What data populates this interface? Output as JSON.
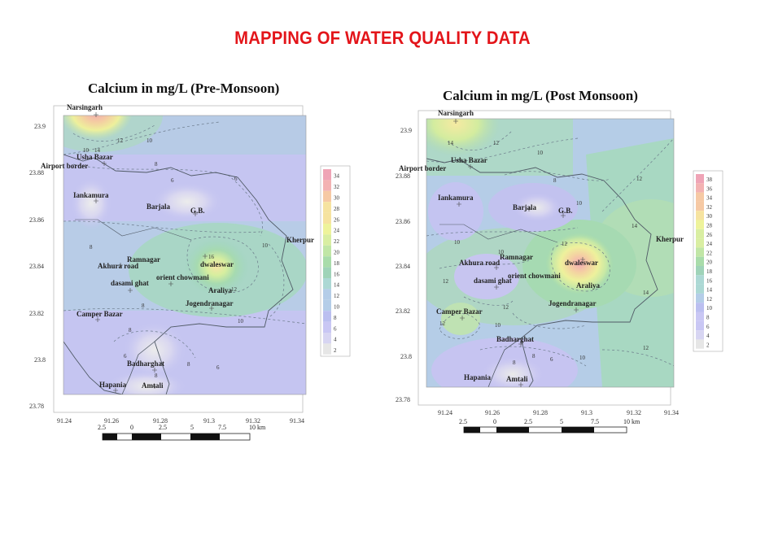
{
  "page": {
    "title": "MAPPING OF WATER QUALITY DATA"
  },
  "colors": {
    "title_red": "#e3151a",
    "scale": [
      "#e6e6e6",
      "#d7d5f2",
      "#c9c7f4",
      "#bbbff0",
      "#b4cde8",
      "#acd8d4",
      "#9fd3b8",
      "#a9dcaa",
      "#c1e6a6",
      "#d9eea2",
      "#eef39b",
      "#f6e3a0",
      "#f6c9a4",
      "#f3b2b2",
      "#efa4b6"
    ]
  },
  "maps": [
    {
      "id": "pre",
      "title": "Calcium in mg/L (Pre-Monsoon)",
      "y_ticks": [
        "23.9",
        "23.88",
        "23.86",
        "23.84",
        "23.82",
        "23.8",
        "23.78"
      ],
      "x_ticks": [
        "91.24",
        "91.26",
        "91.28",
        "91.3",
        "91.32",
        "91.34"
      ],
      "legend": [
        "34",
        "32",
        "30",
        "28",
        "26",
        "24",
        "22",
        "20",
        "18",
        "16",
        "14",
        "12",
        "10",
        "8",
        "6",
        "4",
        "2"
      ],
      "scalebar": [
        "2.5",
        "0",
        "2.5",
        "5",
        "7.5",
        "10 km"
      ],
      "places": [
        {
          "name": "Narsingarh"
        },
        {
          "name": "Usha Bazar"
        },
        {
          "name": "Airport border"
        },
        {
          "name": "Iankamura"
        },
        {
          "name": "Barjala"
        },
        {
          "name": "G.B."
        },
        {
          "name": "Kherpur"
        },
        {
          "name": "Ramnagar"
        },
        {
          "name": "Akhura road"
        },
        {
          "name": "dwaleswar"
        },
        {
          "name": "orient chowmani"
        },
        {
          "name": "dasami ghat"
        },
        {
          "name": "Araliya"
        },
        {
          "name": "Jogendranagar"
        },
        {
          "name": "Camper Bazar"
        },
        {
          "name": "Badharghat"
        },
        {
          "name": "Hapania"
        },
        {
          "name": "Amtali"
        }
      ],
      "contour_labels": [
        "10",
        "14",
        "12",
        "10",
        "8",
        "6",
        "8",
        "6",
        "10",
        "16",
        "12",
        "8",
        "10",
        "8",
        "6",
        "8",
        "6",
        "8"
      ]
    },
    {
      "id": "post",
      "title": "Calcium in mg/L (Post Monsoon)",
      "y_ticks": [
        "23.9",
        "23.88",
        "23.86",
        "23.84",
        "23.82",
        "23.8",
        "23.78"
      ],
      "x_ticks": [
        "91.24",
        "91.26",
        "91.28",
        "91.3",
        "91.32",
        "91.34"
      ],
      "legend": [
        "38",
        "36",
        "34",
        "32",
        "30",
        "28",
        "26",
        "24",
        "22",
        "20",
        "18",
        "16",
        "14",
        "12",
        "10",
        "8",
        "6",
        "4",
        "2"
      ],
      "scalebar": [
        "2.5",
        "0",
        "2.5",
        "5",
        "7.5",
        "10 km"
      ],
      "places": [
        {
          "name": "Narsingarh"
        },
        {
          "name": "Usha Bazar"
        },
        {
          "name": "Airport border"
        },
        {
          "name": "Iankamura"
        },
        {
          "name": "Barjala"
        },
        {
          "name": "G.B."
        },
        {
          "name": "Kherpur"
        },
        {
          "name": "Ramnagar"
        },
        {
          "name": "Akhura road"
        },
        {
          "name": "dwaleswar"
        },
        {
          "name": "orient chowmani"
        },
        {
          "name": "dasami ghat"
        },
        {
          "name": "Araliya"
        },
        {
          "name": "Jogendranagar"
        },
        {
          "name": "Camper Bazar"
        },
        {
          "name": "Badharghat"
        },
        {
          "name": "Hapania"
        },
        {
          "name": "Amtali"
        }
      ],
      "contour_labels": [
        "14",
        "12",
        "10",
        "8",
        "10",
        "12",
        "10",
        "12",
        "14",
        "12",
        "10",
        "12",
        "14",
        "12",
        "10",
        "8",
        "6",
        "8",
        "10",
        "12"
      ]
    }
  ]
}
